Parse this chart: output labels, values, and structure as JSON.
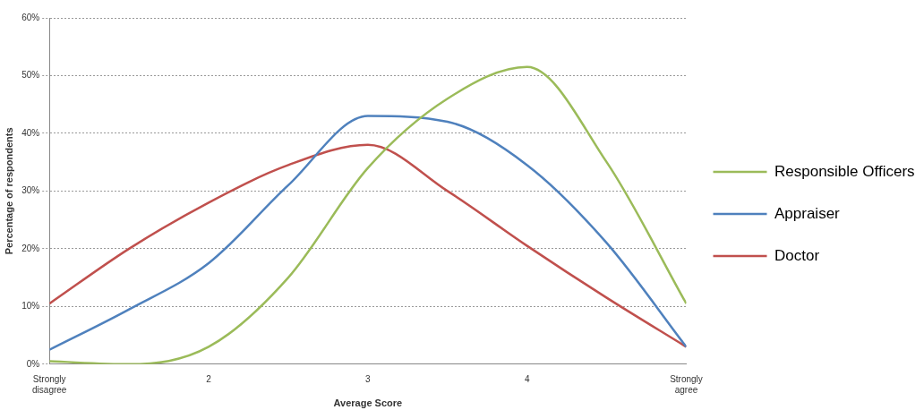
{
  "chart_data": {
    "type": "line",
    "xlabel": "Average Score",
    "ylabel": "Percentage of respondents",
    "x": [
      1,
      1.5,
      2,
      2.5,
      3,
      3.5,
      4,
      4.5,
      5
    ],
    "series": [
      {
        "name": "Responsible Officers",
        "color": "#9bbb59",
        "values": [
          0.5,
          0,
          3,
          15,
          34,
          46,
          51.5,
          35,
          10.5
        ]
      },
      {
        "name": "Appraiser",
        "color": "#4f81bd",
        "values": [
          2.5,
          9.5,
          17.5,
          31,
          43,
          42,
          34.5,
          21,
          3
        ]
      },
      {
        "name": "Doctor",
        "color": "#c0504d",
        "values": [
          10.5,
          20,
          28,
          34.5,
          38,
          30,
          20.5,
          11.5,
          3
        ]
      }
    ],
    "xlim": [
      1,
      5
    ],
    "xticks": [
      {
        "value": 1,
        "label": "Strongly disagree"
      },
      2,
      3,
      4,
      {
        "value": 5,
        "label": "Strongly agree"
      }
    ],
    "ylim": [
      0,
      60
    ],
    "yticks": [
      {
        "value": 0,
        "label": "0%"
      },
      {
        "value": 10,
        "label": "10%"
      },
      {
        "value": 20,
        "label": "20%"
      },
      {
        "value": 30,
        "label": "30%"
      },
      {
        "value": 40,
        "label": "40%"
      },
      {
        "value": 50,
        "label": "50%"
      },
      {
        "value": 60,
        "label": "60%"
      }
    ],
    "grid": "y",
    "legend": "right",
    "marker": "none",
    "line_style": "solid"
  }
}
